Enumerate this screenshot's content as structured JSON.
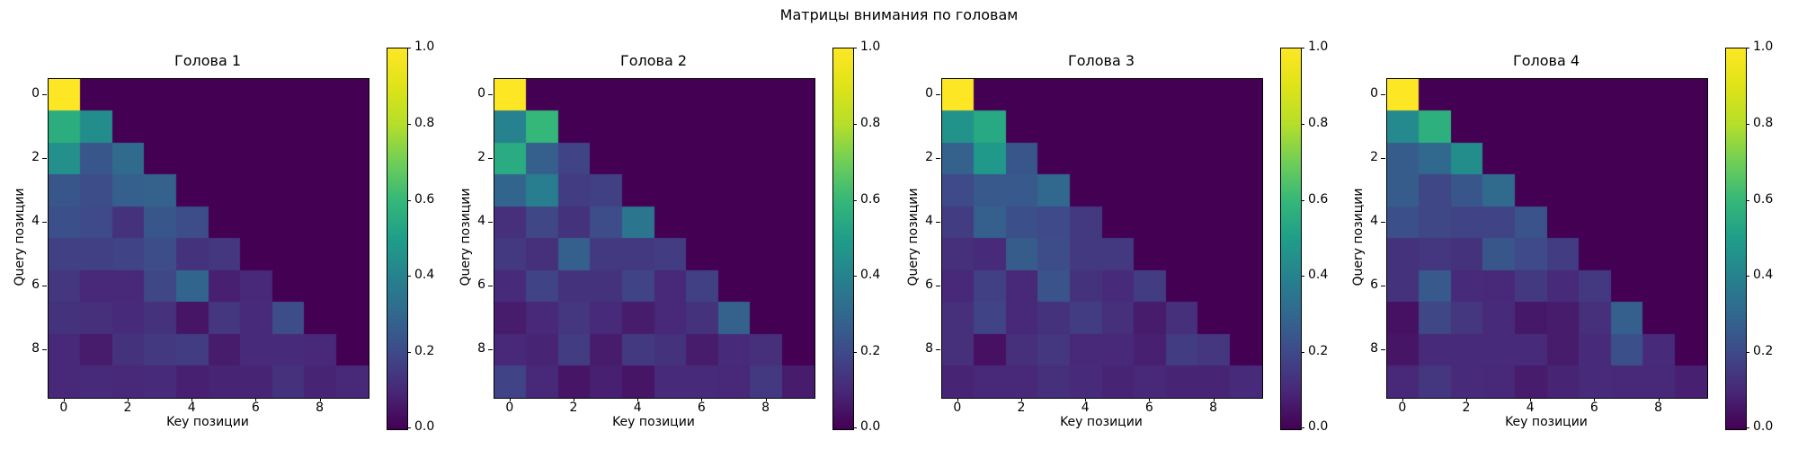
{
  "suptitle": "Матрицы внимания по головам",
  "colors": {
    "background": "#ffffff",
    "text": "#000000",
    "spine": "#000000",
    "colormap_min": "#440154",
    "colormap_max": "#fde725"
  },
  "chart_data": [
    {
      "type": "heatmap",
      "title": "Голова 1",
      "xlabel": "Key позиции",
      "ylabel": "Query позиции",
      "colormap": "viridis",
      "vmin": 0.0,
      "vmax": 1.0,
      "x_ticks": [
        "0",
        "2",
        "4",
        "6",
        "8"
      ],
      "y_ticks": [
        "0",
        "2",
        "4",
        "6",
        "8"
      ],
      "colorbar_ticks": [
        "1.0",
        "0.8",
        "0.6",
        "0.4",
        "0.2",
        "0.0"
      ],
      "matrix": [
        [
          1.0,
          0,
          0,
          0,
          0,
          0,
          0,
          0,
          0,
          0
        ],
        [
          0.56,
          0.44,
          0,
          0,
          0,
          0,
          0,
          0,
          0,
          0
        ],
        [
          0.45,
          0.24,
          0.31,
          0,
          0,
          0,
          0,
          0,
          0,
          0
        ],
        [
          0.24,
          0.21,
          0.27,
          0.28,
          0,
          0,
          0,
          0,
          0,
          0
        ],
        [
          0.22,
          0.2,
          0.13,
          0.24,
          0.21,
          0,
          0,
          0,
          0,
          0
        ],
        [
          0.17,
          0.17,
          0.18,
          0.21,
          0.13,
          0.14,
          0,
          0,
          0,
          0
        ],
        [
          0.14,
          0.1,
          0.1,
          0.19,
          0.29,
          0.08,
          0.1,
          0,
          0,
          0
        ],
        [
          0.13,
          0.12,
          0.11,
          0.13,
          0.05,
          0.14,
          0.11,
          0.21,
          0,
          0
        ],
        [
          0.1,
          0.07,
          0.13,
          0.15,
          0.16,
          0.07,
          0.11,
          0.11,
          0.1,
          0
        ],
        [
          0.1,
          0.11,
          0.1,
          0.11,
          0.08,
          0.09,
          0.09,
          0.13,
          0.09,
          0.1
        ]
      ]
    },
    {
      "type": "heatmap",
      "title": "Голова 2",
      "xlabel": "Key позиции",
      "ylabel": "Query позиции",
      "colormap": "viridis",
      "vmin": 0.0,
      "vmax": 1.0,
      "x_ticks": [
        "0",
        "2",
        "4",
        "6",
        "8"
      ],
      "y_ticks": [
        "0",
        "2",
        "4",
        "6",
        "8"
      ],
      "colorbar_ticks": [
        "1.0",
        "0.8",
        "0.6",
        "0.4",
        "0.2",
        "0.0"
      ],
      "matrix": [
        [
          1.0,
          0,
          0,
          0,
          0,
          0,
          0,
          0,
          0,
          0
        ],
        [
          0.4,
          0.6,
          0,
          0,
          0,
          0,
          0,
          0,
          0,
          0
        ],
        [
          0.55,
          0.27,
          0.18,
          0,
          0,
          0,
          0,
          0,
          0,
          0
        ],
        [
          0.29,
          0.38,
          0.16,
          0.17,
          0,
          0,
          0,
          0,
          0,
          0
        ],
        [
          0.12,
          0.19,
          0.13,
          0.21,
          0.35,
          0,
          0,
          0,
          0,
          0
        ],
        [
          0.15,
          0.12,
          0.27,
          0.15,
          0.15,
          0.16,
          0,
          0,
          0,
          0
        ],
        [
          0.11,
          0.18,
          0.13,
          0.13,
          0.18,
          0.1,
          0.17,
          0,
          0,
          0
        ],
        [
          0.07,
          0.1,
          0.14,
          0.11,
          0.07,
          0.1,
          0.13,
          0.28,
          0,
          0
        ],
        [
          0.1,
          0.09,
          0.16,
          0.07,
          0.15,
          0.13,
          0.07,
          0.11,
          0.12,
          0
        ],
        [
          0.18,
          0.1,
          0.05,
          0.08,
          0.05,
          0.11,
          0.11,
          0.1,
          0.15,
          0.07
        ]
      ]
    },
    {
      "type": "heatmap",
      "title": "Голова 3",
      "xlabel": "Key позиции",
      "ylabel": "Query позиции",
      "colormap": "viridis",
      "vmin": 0.0,
      "vmax": 1.0,
      "x_ticks": [
        "0",
        "2",
        "4",
        "6",
        "8"
      ],
      "y_ticks": [
        "0",
        "2",
        "4",
        "6",
        "8"
      ],
      "colorbar_ticks": [
        "1.0",
        "0.8",
        "0.6",
        "0.4",
        "0.2",
        "0.0"
      ],
      "matrix": [
        [
          1.0,
          0,
          0,
          0,
          0,
          0,
          0,
          0,
          0,
          0
        ],
        [
          0.46,
          0.54,
          0,
          0,
          0,
          0,
          0,
          0,
          0,
          0
        ],
        [
          0.28,
          0.48,
          0.24,
          0,
          0,
          0,
          0,
          0,
          0,
          0
        ],
        [
          0.2,
          0.25,
          0.25,
          0.3,
          0,
          0,
          0,
          0,
          0,
          0
        ],
        [
          0.16,
          0.27,
          0.22,
          0.2,
          0.15,
          0,
          0,
          0,
          0,
          0
        ],
        [
          0.12,
          0.11,
          0.26,
          0.21,
          0.15,
          0.15,
          0,
          0,
          0,
          0
        ],
        [
          0.1,
          0.17,
          0.1,
          0.23,
          0.13,
          0.11,
          0.16,
          0,
          0,
          0
        ],
        [
          0.12,
          0.18,
          0.1,
          0.13,
          0.16,
          0.12,
          0.07,
          0.12,
          0,
          0
        ],
        [
          0.12,
          0.04,
          0.12,
          0.14,
          0.1,
          0.1,
          0.08,
          0.16,
          0.14,
          0
        ],
        [
          0.09,
          0.1,
          0.1,
          0.12,
          0.11,
          0.09,
          0.1,
          0.09,
          0.09,
          0.11
        ]
      ]
    },
    {
      "type": "heatmap",
      "title": "Голова 4",
      "xlabel": "Key позиции",
      "ylabel": "Query позиции",
      "colormap": "viridis",
      "vmin": 0.0,
      "vmax": 1.0,
      "x_ticks": [
        "0",
        "2",
        "4",
        "6",
        "8"
      ],
      "y_ticks": [
        "0",
        "2",
        "4",
        "6",
        "8"
      ],
      "colorbar_ticks": [
        "1.0",
        "0.8",
        "0.6",
        "0.4",
        "0.2",
        "0.0"
      ],
      "matrix": [
        [
          1.0,
          0,
          0,
          0,
          0,
          0,
          0,
          0,
          0,
          0
        ],
        [
          0.43,
          0.57,
          0,
          0,
          0,
          0,
          0,
          0,
          0,
          0
        ],
        [
          0.26,
          0.3,
          0.44,
          0,
          0,
          0,
          0,
          0,
          0,
          0
        ],
        [
          0.26,
          0.19,
          0.24,
          0.31,
          0,
          0,
          0,
          0,
          0,
          0
        ],
        [
          0.22,
          0.19,
          0.18,
          0.18,
          0.23,
          0,
          0,
          0,
          0,
          0
        ],
        [
          0.13,
          0.14,
          0.13,
          0.24,
          0.2,
          0.16,
          0,
          0,
          0,
          0
        ],
        [
          0.13,
          0.25,
          0.11,
          0.1,
          0.15,
          0.11,
          0.15,
          0,
          0,
          0
        ],
        [
          0.04,
          0.19,
          0.14,
          0.11,
          0.06,
          0.07,
          0.12,
          0.27,
          0,
          0
        ],
        [
          0.05,
          0.11,
          0.11,
          0.11,
          0.11,
          0.07,
          0.11,
          0.22,
          0.11,
          0
        ],
        [
          0.1,
          0.14,
          0.11,
          0.1,
          0.07,
          0.09,
          0.11,
          0.1,
          0.1,
          0.08
        ]
      ]
    }
  ]
}
